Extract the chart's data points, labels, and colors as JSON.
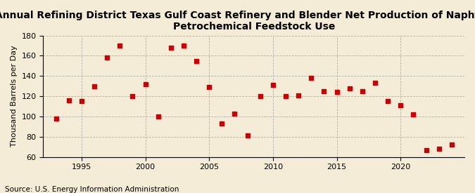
{
  "title_line1": "Annual Refining District Texas Gulf Coast Refinery and Blender Net Production of Naphtha for",
  "title_line2": "Petrochemical Feedstock Use",
  "ylabel": "Thousand Barrels per Day",
  "source": "Source: U.S. Energy Information Administration",
  "years": [
    1993,
    1994,
    1995,
    1996,
    1997,
    1998,
    1999,
    2000,
    2001,
    2002,
    2003,
    2004,
    2005,
    2006,
    2007,
    2008,
    2009,
    2010,
    2011,
    2012,
    2013,
    2014,
    2015,
    2016,
    2017,
    2018,
    2019,
    2020,
    2021,
    2022,
    2023,
    2024
  ],
  "values": [
    98,
    116,
    115,
    130,
    158,
    170,
    120,
    132,
    100,
    168,
    170,
    155,
    129,
    93,
    103,
    81,
    120,
    131,
    120,
    121,
    138,
    125,
    124,
    128,
    125,
    133,
    115,
    111,
    102,
    67,
    68,
    72
  ],
  "xlim": [
    1992,
    2025
  ],
  "ylim": [
    60,
    180
  ],
  "yticks": [
    60,
    80,
    100,
    120,
    140,
    160,
    180
  ],
  "xticks": [
    1995,
    2000,
    2005,
    2010,
    2015,
    2020
  ],
  "marker_color": "#cc0000",
  "marker": "s",
  "marker_size": 5,
  "bg_color": "#f5ecd7",
  "grid_color": "#aaaaaa",
  "title_fontsize": 10,
  "label_fontsize": 8,
  "source_fontsize": 7.5
}
